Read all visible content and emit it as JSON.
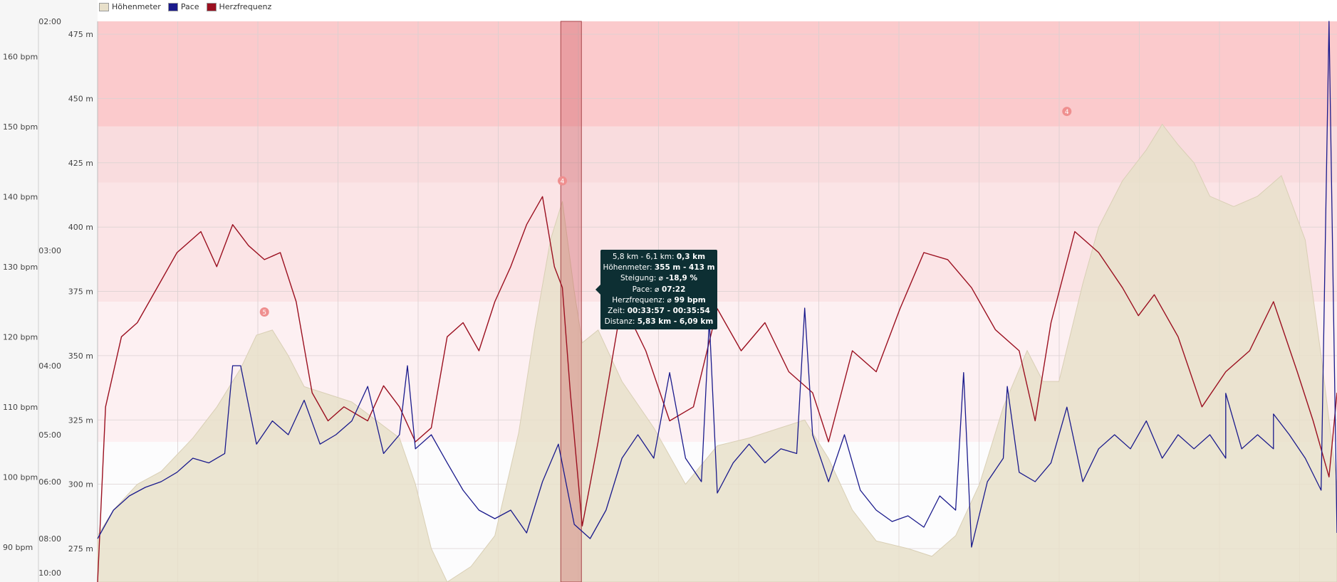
{
  "legend": [
    {
      "label": "Höhenmeter",
      "color": "#e8e0ca"
    },
    {
      "label": "Pace",
      "color": "#1a1a8c"
    },
    {
      "label": "Herzfrequenz",
      "color": "#9b1020"
    }
  ],
  "tooltip": {
    "rows": [
      {
        "label": "5,8 km - 6,1 km:",
        "value": "0,3 km"
      },
      {
        "label": "Höhenmeter:",
        "value": "355 m - 413 m"
      },
      {
        "label": "Steigung:",
        "value": "⌀ -18,9 %"
      },
      {
        "label": "Pace:",
        "value": "⌀ 07:22"
      },
      {
        "label": "Herzfrequenz:",
        "value": "⌀ 99 bpm"
      },
      {
        "label": "Zeit:",
        "value": "00:33:57 - 00:35:54"
      },
      {
        "label": "Distanz:",
        "value": "5,83 km - 6,09 km"
      }
    ]
  },
  "chart_data": {
    "type": "line",
    "xlabel": "",
    "grid": true,
    "legend_position": "top-left",
    "x_range_km": [
      0,
      15.6
    ],
    "selection_km": [
      5.83,
      6.09
    ],
    "axes": {
      "heart_rate": {
        "ticks": [
          "90 bpm",
          "100 bpm",
          "110 bpm",
          "120 bpm",
          "130 bpm",
          "140 bpm",
          "150 bpm",
          "160 bpm"
        ],
        "values": [
          90,
          100,
          110,
          120,
          130,
          140,
          150,
          160
        ],
        "range": [
          85,
          165
        ]
      },
      "pace": {
        "ticks": [
          "10:00",
          "08:00",
          "06:00",
          "05:00",
          "04:00",
          "03:00",
          "02:00"
        ],
        "values_min": [
          10,
          8,
          6,
          5,
          4,
          3,
          2
        ]
      },
      "elevation": {
        "ticks": [
          "275 m",
          "300 m",
          "325 m",
          "350 m",
          "375 m",
          "400 m",
          "425 m",
          "450 m",
          "475 m"
        ],
        "values": [
          275,
          300,
          325,
          350,
          375,
          400,
          425,
          450,
          475
        ],
        "range": [
          262,
          480
        ]
      }
    },
    "hr_zones": [
      {
        "from": 85,
        "to": 105,
        "color": "#fcfcfd"
      },
      {
        "from": 105,
        "to": 125,
        "color": "#fdf0f2"
      },
      {
        "from": 125,
        "to": 142,
        "color": "#fbe4e6"
      },
      {
        "from": 142,
        "to": 150,
        "color": "#f9dcde"
      },
      {
        "from": 150,
        "to": 165,
        "color": "#fbcacc"
      }
    ],
    "markers": [
      {
        "label": "5",
        "x": 2.1,
        "elev": 362
      },
      {
        "label": "4",
        "x": 5.85,
        "elev": 413
      },
      {
        "label": "4",
        "x": 12.2,
        "elev": 440
      }
    ],
    "series": [
      {
        "name": "Höhenmeter",
        "color": "#e8e0ca",
        "axis": "elevation",
        "points": [
          [
            0,
            280
          ],
          [
            0.2,
            290
          ],
          [
            0.5,
            300
          ],
          [
            0.8,
            305
          ],
          [
            1.2,
            318
          ],
          [
            1.5,
            330
          ],
          [
            1.8,
            345
          ],
          [
            2.0,
            358
          ],
          [
            2.2,
            360
          ],
          [
            2.4,
            350
          ],
          [
            2.6,
            338
          ],
          [
            2.9,
            335
          ],
          [
            3.2,
            332
          ],
          [
            3.5,
            325
          ],
          [
            3.8,
            318
          ],
          [
            4.0,
            300
          ],
          [
            4.2,
            275
          ],
          [
            4.4,
            262
          ],
          [
            4.7,
            268
          ],
          [
            5.0,
            280
          ],
          [
            5.3,
            320
          ],
          [
            5.5,
            360
          ],
          [
            5.7,
            395
          ],
          [
            5.85,
            410
          ],
          [
            6.0,
            375
          ],
          [
            6.1,
            355
          ],
          [
            6.3,
            360
          ],
          [
            6.6,
            340
          ],
          [
            7.0,
            322
          ],
          [
            7.4,
            300
          ],
          [
            7.8,
            315
          ],
          [
            8.2,
            318
          ],
          [
            8.6,
            322
          ],
          [
            8.9,
            325
          ],
          [
            9.2,
            310
          ],
          [
            9.5,
            290
          ],
          [
            9.8,
            278
          ],
          [
            10.2,
            275
          ],
          [
            10.5,
            272
          ],
          [
            10.8,
            280
          ],
          [
            11.1,
            300
          ],
          [
            11.4,
            330
          ],
          [
            11.7,
            352
          ],
          [
            11.9,
            340
          ],
          [
            12.1,
            340
          ],
          [
            12.4,
            378
          ],
          [
            12.6,
            400
          ],
          [
            12.9,
            418
          ],
          [
            13.2,
            430
          ],
          [
            13.4,
            440
          ],
          [
            13.6,
            432
          ],
          [
            13.8,
            425
          ],
          [
            14.0,
            412
          ],
          [
            14.3,
            408
          ],
          [
            14.6,
            412
          ],
          [
            14.9,
            420
          ],
          [
            15.2,
            395
          ],
          [
            15.4,
            350
          ],
          [
            15.6,
            300
          ]
        ]
      },
      {
        "name": "Herzfrequenz",
        "color": "#9b1020",
        "axis": "heart_rate",
        "points": [
          [
            0,
            85
          ],
          [
            0.1,
            110
          ],
          [
            0.3,
            120
          ],
          [
            0.5,
            122
          ],
          [
            0.8,
            128
          ],
          [
            1.0,
            132
          ],
          [
            1.3,
            135
          ],
          [
            1.5,
            130
          ],
          [
            1.7,
            136
          ],
          [
            1.9,
            133
          ],
          [
            2.1,
            131
          ],
          [
            2.3,
            132
          ],
          [
            2.5,
            125
          ],
          [
            2.7,
            112
          ],
          [
            2.9,
            108
          ],
          [
            3.1,
            110
          ],
          [
            3.4,
            108
          ],
          [
            3.6,
            113
          ],
          [
            3.8,
            110
          ],
          [
            4.0,
            105
          ],
          [
            4.2,
            107
          ],
          [
            4.4,
            120
          ],
          [
            4.6,
            122
          ],
          [
            4.8,
            118
          ],
          [
            5.0,
            125
          ],
          [
            5.2,
            130
          ],
          [
            5.4,
            136
          ],
          [
            5.6,
            140
          ],
          [
            5.75,
            130
          ],
          [
            5.85,
            127
          ],
          [
            5.95,
            112
          ],
          [
            6.1,
            93
          ],
          [
            6.3,
            105
          ],
          [
            6.6,
            125
          ],
          [
            6.9,
            118
          ],
          [
            7.2,
            108
          ],
          [
            7.5,
            110
          ],
          [
            7.8,
            124
          ],
          [
            8.1,
            118
          ],
          [
            8.4,
            122
          ],
          [
            8.7,
            115
          ],
          [
            9.0,
            112
          ],
          [
            9.2,
            105
          ],
          [
            9.5,
            118
          ],
          [
            9.8,
            115
          ],
          [
            10.1,
            124
          ],
          [
            10.4,
            132
          ],
          [
            10.7,
            131
          ],
          [
            11.0,
            127
          ],
          [
            11.3,
            121
          ],
          [
            11.6,
            118
          ],
          [
            11.8,
            108
          ],
          [
            12.0,
            122
          ],
          [
            12.3,
            135
          ],
          [
            12.6,
            132
          ],
          [
            12.9,
            127
          ],
          [
            13.1,
            123
          ],
          [
            13.3,
            126
          ],
          [
            13.6,
            120
          ],
          [
            13.9,
            110
          ],
          [
            14.2,
            115
          ],
          [
            14.5,
            118
          ],
          [
            14.8,
            125
          ],
          [
            15.1,
            115
          ],
          [
            15.3,
            108
          ],
          [
            15.5,
            100
          ],
          [
            15.6,
            112
          ]
        ]
      },
      {
        "name": "Pace",
        "color": "#1a1a8c",
        "axis": "pace",
        "points_min_per_km": [
          [
            0,
            8.0
          ],
          [
            0.2,
            7.0
          ],
          [
            0.4,
            6.5
          ],
          [
            0.6,
            6.2
          ],
          [
            0.8,
            6.0
          ],
          [
            1.0,
            5.8
          ],
          [
            1.2,
            5.5
          ],
          [
            1.4,
            5.6
          ],
          [
            1.6,
            5.4
          ],
          [
            1.8,
            4.0
          ],
          [
            2.0,
            5.2
          ],
          [
            2.2,
            4.8
          ],
          [
            2.4,
            5.0
          ],
          [
            2.6,
            4.5
          ],
          [
            2.8,
            5.2
          ],
          [
            3.0,
            5.0
          ],
          [
            3.2,
            4.8
          ],
          [
            3.4,
            4.3
          ],
          [
            3.6,
            5.4
          ],
          [
            3.8,
            5.0
          ],
          [
            4.0,
            5.3
          ],
          [
            4.2,
            5.0
          ],
          [
            4.4,
            5.6
          ],
          [
            4.6,
            6.3
          ],
          [
            4.8,
            7.0
          ],
          [
            5.0,
            7.3
          ],
          [
            5.2,
            7.0
          ],
          [
            5.4,
            7.8
          ],
          [
            5.6,
            6.0
          ],
          [
            5.8,
            5.2
          ],
          [
            6.0,
            7.5
          ],
          [
            6.2,
            8.0
          ],
          [
            6.4,
            7.0
          ],
          [
            6.6,
            5.5
          ],
          [
            6.8,
            5.0
          ],
          [
            7.0,
            5.5
          ],
          [
            7.2,
            4.1
          ],
          [
            7.4,
            5.5
          ],
          [
            7.6,
            6.0
          ],
          [
            7.8,
            6.4
          ],
          [
            8.0,
            5.6
          ],
          [
            8.2,
            5.2
          ],
          [
            8.4,
            5.6
          ],
          [
            8.6,
            5.3
          ],
          [
            8.8,
            5.4
          ],
          [
            9.0,
            5.0
          ],
          [
            9.2,
            6.0
          ],
          [
            9.4,
            5.0
          ],
          [
            9.6,
            6.3
          ],
          [
            9.8,
            7.0
          ],
          [
            10.0,
            7.4
          ],
          [
            10.2,
            7.2
          ],
          [
            10.4,
            7.6
          ],
          [
            10.6,
            6.5
          ],
          [
            10.8,
            7.0
          ],
          [
            11.0,
            8.5
          ],
          [
            11.2,
            6.0
          ],
          [
            11.4,
            5.5
          ],
          [
            11.6,
            5.8
          ],
          [
            11.8,
            6.0
          ],
          [
            12.0,
            5.6
          ],
          [
            12.2,
            4.6
          ],
          [
            12.4,
            6.0
          ],
          [
            12.6,
            5.3
          ],
          [
            12.8,
            5.0
          ],
          [
            13.0,
            5.3
          ],
          [
            13.2,
            4.8
          ],
          [
            13.4,
            5.5
          ],
          [
            13.6,
            5.0
          ],
          [
            13.8,
            5.3
          ],
          [
            14.0,
            5.0
          ],
          [
            14.2,
            5.5
          ],
          [
            14.4,
            5.3
          ],
          [
            14.6,
            5.0
          ],
          [
            14.8,
            5.3
          ],
          [
            15.0,
            5.0
          ],
          [
            15.2,
            5.5
          ],
          [
            15.4,
            6.3
          ],
          [
            15.6,
            7.8
          ]
        ],
        "spikes_min_per_km": [
          [
            1.7,
            4.0
          ],
          [
            3.9,
            4.0
          ],
          [
            7.7,
            3.6
          ],
          [
            8.9,
            3.5
          ],
          [
            10.9,
            4.1
          ],
          [
            11.45,
            4.3
          ],
          [
            14.2,
            4.4
          ],
          [
            14.8,
            4.7
          ],
          [
            15.5,
            2.0
          ]
        ]
      }
    ]
  }
}
